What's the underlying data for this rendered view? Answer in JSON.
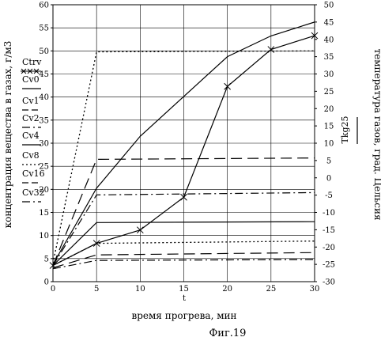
{
  "chart_data": {
    "type": "line",
    "xlabel": "время прогрева, мин",
    "x_var": "t",
    "ylabel_left": "концентрация вещества в газах, г/м3",
    "ylabel_right": "температура газов, град. Цельсия",
    "caption": "Фиг.19",
    "xlim": [
      0,
      30
    ],
    "ylim_left": [
      0,
      60
    ],
    "ylim_right": [
      -30,
      50
    ],
    "xticks": [
      0,
      5,
      10,
      15,
      20,
      25,
      30
    ],
    "yticks_left": [
      0,
      5,
      10,
      15,
      20,
      25,
      30,
      35,
      40,
      45,
      50,
      55,
      60
    ],
    "yticks_right": [
      -30,
      -25,
      -20,
      -15,
      -10,
      -5,
      0,
      5,
      10,
      15,
      20,
      25,
      30,
      35,
      40,
      45,
      50
    ],
    "grid": true,
    "legend_left": [
      "Ctrv",
      "Cv0",
      "Cv1",
      "Cv2",
      "Cv4",
      "Cv8",
      "Cv16",
      "Cv32"
    ],
    "legend_right": [
      "Tkg25"
    ],
    "series": [
      {
        "name": "Ctrv",
        "axis": "left",
        "style": "solid-x",
        "x": [
          0,
          5,
          10,
          15,
          20,
          25,
          30
        ],
        "y": [
          3.5,
          8.3,
          11.2,
          18.3,
          42.3,
          50.3,
          53.3
        ]
      },
      {
        "name": "Cv0",
        "axis": "left",
        "style": "dashed",
        "x": [
          0,
          5,
          30
        ],
        "y": [
          3.5,
          26.5,
          26.8
        ]
      },
      {
        "name": "Cv1",
        "axis": "left",
        "style": "dashdot",
        "x": [
          0,
          5,
          30
        ],
        "y": [
          3.5,
          18.8,
          19.3
        ]
      },
      {
        "name": "Cv2",
        "axis": "left",
        "style": "solid",
        "x": [
          0,
          5,
          30
        ],
        "y": [
          3.5,
          12.8,
          13.0
        ]
      },
      {
        "name": "Cv4",
        "axis": "left",
        "style": "dotted",
        "x": [
          0,
          5,
          30
        ],
        "y": [
          3.5,
          8.3,
          8.8
        ]
      },
      {
        "name": "Cv8",
        "axis": "left",
        "style": "dashed",
        "x": [
          0,
          5,
          30
        ],
        "y": [
          3.0,
          5.8,
          6.3
        ]
      },
      {
        "name": "Cv16",
        "axis": "left",
        "style": "dashdot",
        "x": [
          0,
          5,
          30
        ],
        "y": [
          2.8,
          4.6,
          4.8
        ]
      },
      {
        "name": "Cv32",
        "axis": "left",
        "style": "dotted",
        "x": [
          0,
          5,
          30
        ],
        "y": [
          4.0,
          49.8,
          50.0
        ]
      },
      {
        "name": "Tkg25",
        "axis": "right",
        "style": "solid",
        "x": [
          0,
          5,
          10,
          20,
          25,
          30
        ],
        "y": [
          -25,
          -3,
          12,
          35,
          41,
          45
        ]
      }
    ]
  }
}
